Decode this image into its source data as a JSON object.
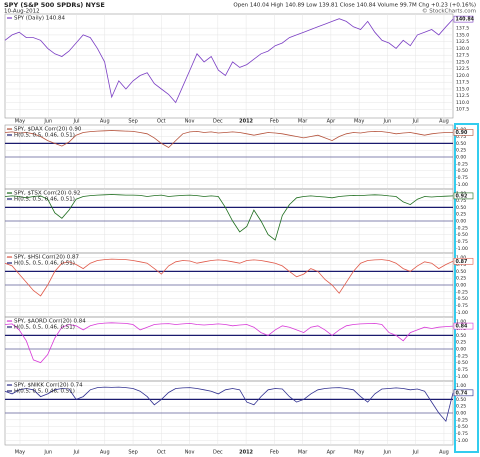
{
  "header": {
    "symbol": "SPY (S&P 500 SPDRs) NYSE",
    "date": "10-Aug-2012",
    "quote": "Open 140.04  High 140.89  Low 139.81  Close 140.84  Volume 99.7M  Chg +0.23 (+0.16%)",
    "credit": "© StockCharts.com"
  },
  "time_axis": {
    "xlim": [
      0,
      15.85
    ],
    "xticks": [
      {
        "value": 0.53,
        "label": "May"
      },
      {
        "value": 1.53,
        "label": "Jun"
      },
      {
        "value": 2.53,
        "label": "Jul"
      },
      {
        "value": 3.53,
        "label": "Aug"
      },
      {
        "value": 4.53,
        "label": "Sep"
      },
      {
        "value": 5.53,
        "label": "Oct"
      },
      {
        "value": 6.53,
        "label": "Nov"
      },
      {
        "value": 7.53,
        "label": "Dec"
      },
      {
        "value": 8.53,
        "label": "2012"
      },
      {
        "value": 9.53,
        "label": "Feb"
      },
      {
        "value": 10.53,
        "label": "Mar"
      },
      {
        "value": 11.53,
        "label": "Apr"
      },
      {
        "value": 12.53,
        "label": "May"
      },
      {
        "value": 13.53,
        "label": "Jun"
      },
      {
        "value": 14.53,
        "label": "Jul"
      },
      {
        "value": 15.53,
        "label": "Aug"
      }
    ]
  },
  "chart_data": [
    {
      "type": "line",
      "name": "SPY (Daily) 140.84",
      "last_label": "140.84",
      "color": "#7b3fc4",
      "ylim": [
        105,
        142
      ],
      "yticks": [
        {
          "value": 107.5,
          "label": "107.5"
        },
        {
          "value": 110,
          "label": "110.0"
        },
        {
          "value": 112.5,
          "label": "112.5"
        },
        {
          "value": 115,
          "label": "115.0"
        },
        {
          "value": 117.5,
          "label": "117.5"
        },
        {
          "value": 120,
          "label": "120.0"
        },
        {
          "value": 122.5,
          "label": "122.5"
        },
        {
          "value": 125,
          "label": "125.0"
        },
        {
          "value": 127.5,
          "label": "127.5"
        },
        {
          "value": 130,
          "label": "130.0"
        },
        {
          "value": 132.5,
          "label": "132.5"
        },
        {
          "value": 135,
          "label": "135.0"
        },
        {
          "value": 137.5,
          "label": "137.5"
        }
      ],
      "values": [
        133,
        135,
        136,
        134,
        134,
        133,
        130,
        128,
        127,
        129,
        132,
        135,
        134,
        130,
        125,
        112,
        118,
        115,
        118,
        120,
        121,
        117,
        115,
        113,
        110,
        116,
        122,
        128,
        125,
        127,
        122,
        120,
        125,
        123,
        124,
        126,
        128,
        129,
        131,
        132,
        134,
        135,
        136,
        137,
        138,
        139,
        140,
        141,
        140,
        138,
        137,
        140,
        136,
        133,
        132,
        130,
        133,
        131,
        135,
        136,
        137,
        135,
        138,
        140.84
      ]
    },
    {
      "type": "line",
      "name": "SPY, $DAX Corr(20) 0.90",
      "overlay_label": "H(0.5, 0.5, 0.46, 0.51)",
      "last_label": "0.90",
      "color": "#b5533c",
      "ylim": [
        -1.1,
        1.1
      ],
      "reference_lines": [
        0.5,
        0
      ],
      "yticks": [
        {
          "value": 1,
          "label": "1.00"
        },
        {
          "value": 0.75,
          "label": "0.75"
        },
        {
          "value": 0.5,
          "label": "0.50"
        },
        {
          "value": 0.25,
          "label": "0.25"
        },
        {
          "value": 0,
          "label": "0.00"
        },
        {
          "value": -0.25,
          "label": "-0.25"
        },
        {
          "value": -0.5,
          "label": "-0.50"
        },
        {
          "value": -0.75,
          "label": "-0.75"
        },
        {
          "value": -1,
          "label": "-1.00"
        }
      ],
      "values": [
        0.9,
        0.92,
        0.88,
        0.9,
        0.85,
        0.75,
        0.6,
        0.5,
        0.4,
        0.55,
        0.8,
        0.9,
        0.93,
        0.95,
        0.96,
        0.97,
        0.96,
        0.95,
        0.94,
        0.9,
        0.85,
        0.7,
        0.5,
        0.35,
        0.6,
        0.85,
        0.92,
        0.94,
        0.9,
        0.92,
        0.88,
        0.9,
        0.92,
        0.9,
        0.85,
        0.8,
        0.85,
        0.9,
        0.88,
        0.85,
        0.8,
        0.75,
        0.7,
        0.75,
        0.8,
        0.7,
        0.6,
        0.75,
        0.85,
        0.9,
        0.88,
        0.92,
        0.94,
        0.93,
        0.9,
        0.85,
        0.88,
        0.9,
        0.85,
        0.8,
        0.85,
        0.88,
        0.9,
        0.9
      ]
    },
    {
      "type": "line",
      "name": "SPY, $TSX Corr(20) 0.92",
      "overlay_label": "H(0.5, 0.5, 0.46, 0.51)",
      "last_label": "0.92",
      "color": "#1f6e1f",
      "ylim": [
        -1.1,
        1.1
      ],
      "reference_lines": [
        0.5,
        0
      ],
      "yticks": [
        {
          "value": 1,
          "label": "1.00"
        },
        {
          "value": 0.75,
          "label": "0.75"
        },
        {
          "value": 0.5,
          "label": "0.50"
        },
        {
          "value": 0.25,
          "label": "0.25"
        },
        {
          "value": 0,
          "label": "0.00"
        },
        {
          "value": -0.25,
          "label": "-0.25"
        },
        {
          "value": -0.5,
          "label": "-0.50"
        },
        {
          "value": -0.75,
          "label": "-0.75"
        },
        {
          "value": -1,
          "label": "-1.00"
        }
      ],
      "values": [
        0.9,
        0.92,
        0.9,
        0.85,
        0.9,
        0.92,
        0.8,
        0.3,
        0.1,
        0.4,
        0.8,
        0.9,
        0.93,
        0.95,
        0.96,
        0.97,
        0.96,
        0.95,
        0.95,
        0.94,
        0.9,
        0.93,
        0.95,
        0.9,
        0.92,
        0.94,
        0.95,
        0.93,
        0.9,
        0.92,
        0.9,
        0.5,
        0.0,
        -0.4,
        -0.2,
        0.4,
        0.0,
        -0.5,
        -0.7,
        0.2,
        0.6,
        0.85,
        0.9,
        0.92,
        0.9,
        0.88,
        0.85,
        0.9,
        0.92,
        0.94,
        0.93,
        0.95,
        0.96,
        0.95,
        0.92,
        0.9,
        0.7,
        0.6,
        0.8,
        0.9,
        0.88,
        0.9,
        0.91,
        0.92
      ]
    },
    {
      "type": "line",
      "name": "SPY, $HSI Corr(20) 0.87",
      "overlay_label": "H(0.5, 0.5, 0.46, 0.51)",
      "last_label": "0.87",
      "color": "#e05a4a",
      "ylim": [
        -1.1,
        1.1
      ],
      "reference_lines": [
        0.5,
        0
      ],
      "yticks": [
        {
          "value": 1,
          "label": "1.00"
        },
        {
          "value": 0.75,
          "label": "0.75"
        },
        {
          "value": 0.5,
          "label": "0.50"
        },
        {
          "value": 0.25,
          "label": "0.25"
        },
        {
          "value": 0,
          "label": "0.00"
        },
        {
          "value": -0.25,
          "label": "-0.25"
        },
        {
          "value": -0.5,
          "label": "-0.50"
        },
        {
          "value": -0.75,
          "label": "-0.75"
        },
        {
          "value": -1,
          "label": "-1.00"
        }
      ],
      "values": [
        0.8,
        0.7,
        0.4,
        0.1,
        -0.2,
        -0.4,
        0.0,
        0.5,
        0.8,
        0.85,
        0.75,
        0.6,
        0.8,
        0.9,
        0.93,
        0.95,
        0.94,
        0.93,
        0.9,
        0.85,
        0.8,
        0.6,
        0.4,
        0.7,
        0.85,
        0.9,
        0.88,
        0.8,
        0.85,
        0.9,
        0.92,
        0.9,
        0.85,
        0.8,
        0.9,
        0.92,
        0.9,
        0.85,
        0.8,
        0.7,
        0.5,
        0.3,
        0.4,
        0.6,
        0.5,
        0.2,
        0.0,
        -0.3,
        0.1,
        0.5,
        0.8,
        0.9,
        0.92,
        0.93,
        0.9,
        0.8,
        0.6,
        0.5,
        0.7,
        0.85,
        0.8,
        0.6,
        0.75,
        0.87
      ]
    },
    {
      "type": "line",
      "name": "SPY, $AORD Corr(20) 0.84",
      "overlay_label": "H(0.5, 0.5, 0.46, 0.51)",
      "last_label": "0.84",
      "color": "#d83ad8",
      "ylim": [
        -1.1,
        1.1
      ],
      "reference_lines": [
        0.5,
        0
      ],
      "yticks": [
        {
          "value": 1,
          "label": "1.00"
        },
        {
          "value": 0.75,
          "label": "0.75"
        },
        {
          "value": 0.5,
          "label": "0.50"
        },
        {
          "value": 0.25,
          "label": "0.25"
        },
        {
          "value": 0,
          "label": "0.00"
        },
        {
          "value": -0.25,
          "label": "-0.25"
        },
        {
          "value": -0.5,
          "label": "-0.50"
        },
        {
          "value": -0.75,
          "label": "-0.75"
        },
        {
          "value": -1,
          "label": "-1.00"
        }
      ],
      "values": [
        0.9,
        0.92,
        0.7,
        0.3,
        -0.4,
        -0.5,
        -0.2,
        0.4,
        0.8,
        0.9,
        0.85,
        0.7,
        0.85,
        0.92,
        0.95,
        0.96,
        0.95,
        0.94,
        0.9,
        0.7,
        0.8,
        0.9,
        0.92,
        0.93,
        0.9,
        0.92,
        0.94,
        0.9,
        0.88,
        0.9,
        0.92,
        0.9,
        0.85,
        0.88,
        0.9,
        0.8,
        0.6,
        0.5,
        0.7,
        0.85,
        0.8,
        0.7,
        0.6,
        0.8,
        0.85,
        0.7,
        0.5,
        0.7,
        0.85,
        0.9,
        0.92,
        0.93,
        0.94,
        0.9,
        0.6,
        0.5,
        0.3,
        0.6,
        0.7,
        0.8,
        0.75,
        0.8,
        0.82,
        0.84
      ]
    },
    {
      "type": "line",
      "name": "SPY, $NIKK Corr(20) 0.74",
      "overlay_label": "H(0.5, 0.5, 0.46, 0.51)",
      "last_label": "0.74",
      "color": "#303090",
      "ylim": [
        -1.1,
        1.1
      ],
      "reference_lines": [
        0.5,
        0
      ],
      "yticks": [
        {
          "value": 1,
          "label": "1.00"
        },
        {
          "value": 0.75,
          "label": "0.75"
        },
        {
          "value": 0.5,
          "label": "0.50"
        },
        {
          "value": 0.25,
          "label": "0.25"
        },
        {
          "value": 0,
          "label": "0.00"
        },
        {
          "value": -0.25,
          "label": "-0.25"
        },
        {
          "value": -0.5,
          "label": "-0.50"
        },
        {
          "value": -0.75,
          "label": "-0.75"
        },
        {
          "value": -1,
          "label": "-1.00"
        }
      ],
      "values": [
        0.8,
        0.7,
        0.85,
        0.9,
        0.85,
        0.6,
        0.7,
        0.85,
        0.9,
        0.88,
        0.5,
        0.6,
        0.85,
        0.93,
        0.95,
        0.94,
        0.95,
        0.93,
        0.9,
        0.8,
        0.6,
        0.3,
        0.5,
        0.75,
        0.9,
        0.92,
        0.93,
        0.9,
        0.85,
        0.8,
        0.7,
        0.85,
        0.9,
        0.85,
        0.4,
        0.3,
        0.6,
        0.85,
        0.9,
        0.88,
        0.6,
        0.4,
        0.5,
        0.7,
        0.85,
        0.9,
        0.92,
        0.93,
        0.9,
        0.85,
        0.6,
        0.4,
        0.7,
        0.88,
        0.9,
        0.92,
        0.9,
        0.85,
        0.88,
        0.8,
        0.4,
        0.0,
        -0.3,
        0.74
      ]
    }
  ]
}
